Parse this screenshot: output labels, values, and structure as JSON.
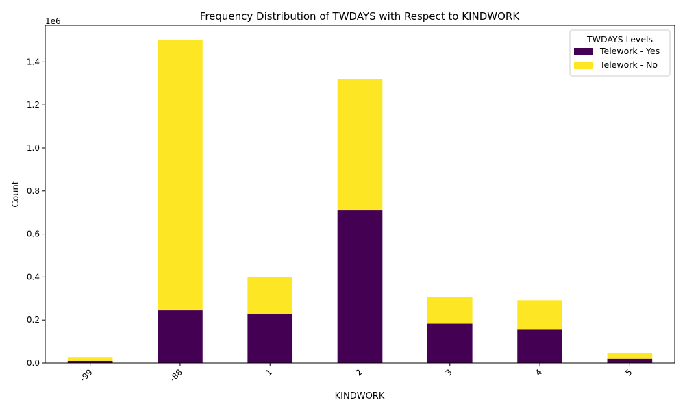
{
  "chart_data": {
    "type": "bar",
    "stacked": true,
    "title": "Frequency Distribution of TWDAYS with Respect to KINDWORK",
    "xlabel": "KINDWORK",
    "ylabel": "Count",
    "offset_label": "1e6",
    "categories": [
      "-99",
      "-88",
      "1",
      "2",
      "3",
      "4",
      "5"
    ],
    "series": [
      {
        "name": "Telework - Yes",
        "color": "#440154",
        "values": [
          10000,
          245000,
          228000,
          710000,
          183000,
          155000,
          20000
        ]
      },
      {
        "name": "Telework - No",
        "color": "#fde725",
        "values": [
          18000,
          1258000,
          172000,
          610000,
          125000,
          137000,
          28000
        ]
      }
    ],
    "ylim": [
      0,
      1570000
    ],
    "yticks": [
      0,
      200000,
      400000,
      600000,
      800000,
      1000000,
      1200000,
      1400000
    ],
    "ytick_labels": [
      "0.0",
      "0.2",
      "0.4",
      "0.6",
      "0.8",
      "1.0",
      "1.2",
      "1.4"
    ],
    "xtick_rotation": 45,
    "grid": false,
    "legend": {
      "title": "TWDAYS Levels",
      "position": "top-right"
    }
  }
}
